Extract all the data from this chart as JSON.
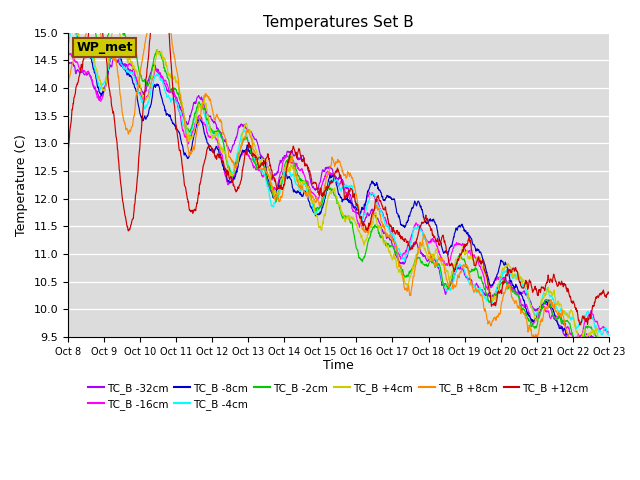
{
  "title": "Temperatures Set B",
  "xlabel": "Time",
  "ylabel": "Temperature (C)",
  "ylim": [
    9.5,
    15.0
  ],
  "yticks": [
    9.5,
    10.0,
    10.5,
    11.0,
    11.5,
    12.0,
    12.5,
    13.0,
    13.5,
    14.0,
    14.5,
    15.0
  ],
  "xtick_labels": [
    "Oct 8",
    "Oct 9",
    "Oct 10",
    "Oct 11",
    "Oct 12",
    "Oct 13",
    "Oct 14",
    "Oct 15",
    "Oct 16",
    "Oct 17",
    "Oct 18",
    "Oct 19",
    "Oct 20",
    "Oct 21",
    "Oct 22",
    "Oct 23"
  ],
  "bg_color": "#dcdcdc",
  "series": [
    {
      "name": "TC_B -32cm",
      "color": "#aa00ff"
    },
    {
      "name": "TC_B -16cm",
      "color": "#ff00ff"
    },
    {
      "name": "TC_B -8cm",
      "color": "#0000cc"
    },
    {
      "name": "TC_B -4cm",
      "color": "#00ffff"
    },
    {
      "name": "TC_B -2cm",
      "color": "#00cc00"
    },
    {
      "name": "TC_B +4cm",
      "color": "#cccc00"
    },
    {
      "name": "TC_B +8cm",
      "color": "#ff8800"
    },
    {
      "name": "TC_B +12cm",
      "color": "#cc0000"
    }
  ],
  "wp_met_box_facecolor": "#cccc00",
  "wp_met_box_edgecolor": "#8b4513",
  "wp_met_text": "WP_met"
}
